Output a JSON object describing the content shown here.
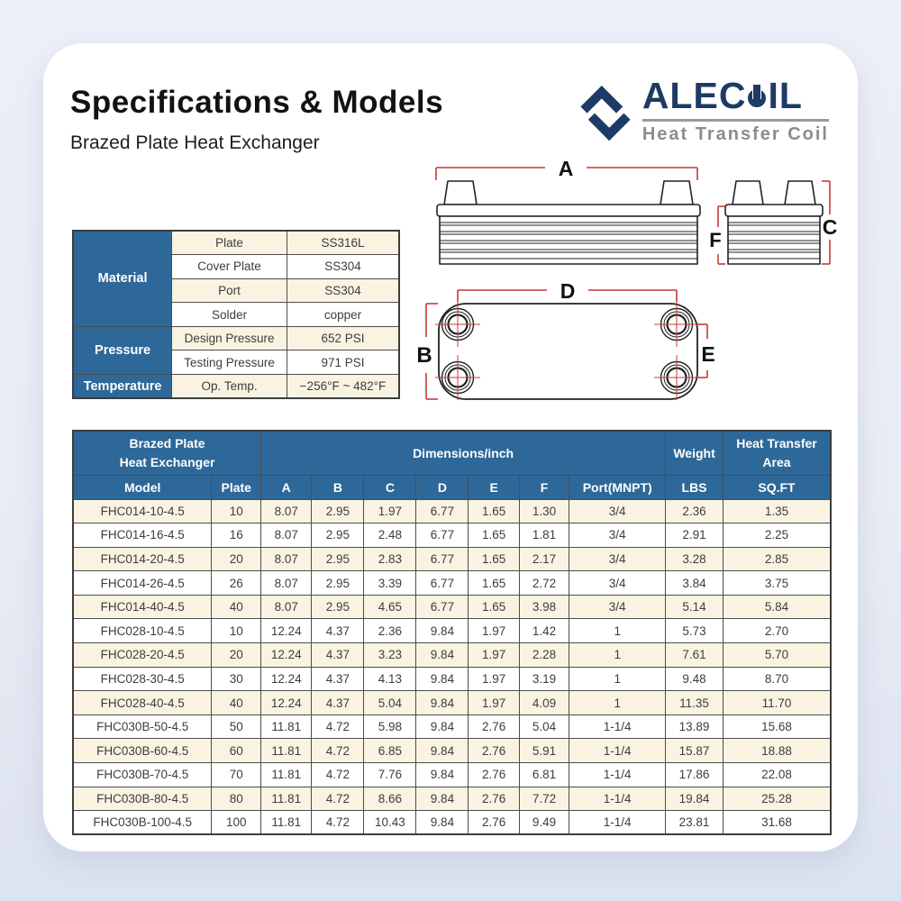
{
  "page": {
    "title": "Specifications & Models",
    "subtitle": "Brazed Plate Heat Exchanger"
  },
  "logo": {
    "name_left": "ALEC",
    "name_right": "IL",
    "full_name": "ALECOIL",
    "tagline": "Heat Transfer Coil",
    "brand_color": "#1e3a66",
    "tagline_color": "#8c8c8c"
  },
  "properties_table": {
    "groups": [
      {
        "label": "Material",
        "rows": [
          [
            "Plate",
            "SS316L"
          ],
          [
            "Cover Plate",
            "SS304"
          ],
          [
            "Port",
            "SS304"
          ],
          [
            "Solder",
            "copper"
          ]
        ]
      },
      {
        "label": "Pressure",
        "rows": [
          [
            "Design Pressure",
            "652 PSI"
          ],
          [
            "Testing Pressure",
            "971 PSI"
          ]
        ]
      },
      {
        "label": "Temperature",
        "rows": [
          [
            "Op. Temp.",
            "−256°F ~ 482°F"
          ]
        ]
      }
    ]
  },
  "diagram": {
    "labels": {
      "a": "A",
      "b": "B",
      "c": "C",
      "d": "D",
      "e": "E",
      "f": "F"
    },
    "dimension_line_color": "#c43c32",
    "outline_color": "#222222"
  },
  "spec_table": {
    "header": {
      "group_line1": "Brazed Plate",
      "group_line2": "Heat Exchanger",
      "dimensions": "Dimensions/inch",
      "weight": "Weight",
      "area_line1": "Heat Transfer",
      "area_line2": "Area"
    },
    "columns": [
      "Model",
      "Plate",
      "A",
      "B",
      "C",
      "D",
      "E",
      "F",
      "Port(MNPT)",
      "LBS",
      "SQ.FT"
    ],
    "rows": [
      [
        "FHC014-10-4.5",
        "10",
        "8.07",
        "2.95",
        "1.97",
        "6.77",
        "1.65",
        "1.30",
        "3/4",
        "2.36",
        "1.35"
      ],
      [
        "FHC014-16-4.5",
        "16",
        "8.07",
        "2.95",
        "2.48",
        "6.77",
        "1.65",
        "1.81",
        "3/4",
        "2.91",
        "2.25"
      ],
      [
        "FHC014-20-4.5",
        "20",
        "8.07",
        "2.95",
        "2.83",
        "6.77",
        "1.65",
        "2.17",
        "3/4",
        "3.28",
        "2.85"
      ],
      [
        "FHC014-26-4.5",
        "26",
        "8.07",
        "2.95",
        "3.39",
        "6.77",
        "1.65",
        "2.72",
        "3/4",
        "3.84",
        "3.75"
      ],
      [
        "FHC014-40-4.5",
        "40",
        "8.07",
        "2.95",
        "4.65",
        "6.77",
        "1.65",
        "3.98",
        "3/4",
        "5.14",
        "5.84"
      ],
      [
        "FHC028-10-4.5",
        "10",
        "12.24",
        "4.37",
        "2.36",
        "9.84",
        "1.97",
        "1.42",
        "1",
        "5.73",
        "2.70"
      ],
      [
        "FHC028-20-4.5",
        "20",
        "12.24",
        "4.37",
        "3.23",
        "9.84",
        "1.97",
        "2.28",
        "1",
        "7.61",
        "5.70"
      ],
      [
        "FHC028-30-4.5",
        "30",
        "12.24",
        "4.37",
        "4.13",
        "9.84",
        "1.97",
        "3.19",
        "1",
        "9.48",
        "8.70"
      ],
      [
        "FHC028-40-4.5",
        "40",
        "12.24",
        "4.37",
        "5.04",
        "9.84",
        "1.97",
        "4.09",
        "1",
        "11.35",
        "11.70"
      ],
      [
        "FHC030B-50-4.5",
        "50",
        "11.81",
        "4.72",
        "5.98",
        "9.84",
        "2.76",
        "5.04",
        "1-1/4",
        "13.89",
        "15.68"
      ],
      [
        "FHC030B-60-4.5",
        "60",
        "11.81",
        "4.72",
        "6.85",
        "9.84",
        "2.76",
        "5.91",
        "1-1/4",
        "15.87",
        "18.88"
      ],
      [
        "FHC030B-70-4.5",
        "70",
        "11.81",
        "4.72",
        "7.76",
        "9.84",
        "2.76",
        "6.81",
        "1-1/4",
        "17.86",
        "22.08"
      ],
      [
        "FHC030B-80-4.5",
        "80",
        "11.81",
        "4.72",
        "8.66",
        "9.84",
        "2.76",
        "7.72",
        "1-1/4",
        "19.84",
        "25.28"
      ],
      [
        "FHC030B-100-4.5",
        "100",
        "11.81",
        "4.72",
        "10.43",
        "9.84",
        "2.76",
        "9.49",
        "1-1/4",
        "23.81",
        "31.68"
      ]
    ],
    "header_bg": "#2d6899",
    "row_alt_bg": "#faf3e2"
  }
}
